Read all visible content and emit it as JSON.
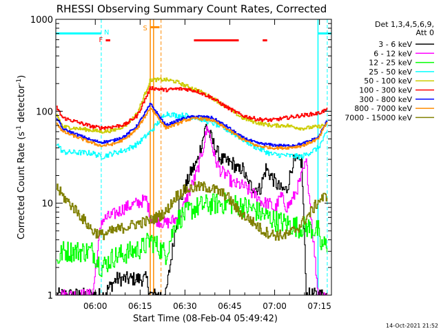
{
  "chart_data": {
    "type": "line",
    "title": "RHESSI Observing Summary Count Rates, Corrected",
    "xlabel": "Start Time (08-Feb-04 05:49:42)",
    "ylabel": "Corrected Count Rate (s",
    "ylabel_sup1": "-1",
    "ylabel_mid": " detector",
    "ylabel_sup2": "-1",
    "ylabel_end": ")",
    "x_ticks": [
      "06:00",
      "06:15",
      "06:30",
      "06:45",
      "07:00",
      "07:15"
    ],
    "x_tick_minutes": [
      6.0,
      21.0,
      36.0,
      51.0,
      66.0,
      81.0
    ],
    "xlim_minutes": [
      -7.2,
      85.0
    ],
    "y_scale": "log",
    "ylim": [
      1,
      1000
    ],
    "y_ticks": [
      "1",
      "10",
      "100",
      "1000"
    ],
    "y_tick_values": [
      1,
      10,
      100,
      1000
    ],
    "legend_header_1": "Det 1,3,4,5,6,9,",
    "legend_header_2": "Att 0",
    "legend_placement": "right",
    "flags": {
      "N_label": "N",
      "F_label": "F",
      "S_label": "S",
      "night_segments": [
        [
          -7.2,
          8.0
        ],
        [
          80.5,
          85.0
        ]
      ],
      "flare_segments": [
        [
          9.5,
          11.0
        ],
        [
          39.0,
          54.0
        ],
        [
          62.0,
          63.5
        ]
      ],
      "saa_segments": [
        [
          24.5,
          27.5
        ]
      ]
    },
    "vertical_markers": [
      {
        "minute": 8.0,
        "color": "#00ffff",
        "style": "dashed"
      },
      {
        "minute": 24.4,
        "color": "#ff8c00",
        "style": "solid"
      },
      {
        "minute": 25.5,
        "color": "#ff8c00",
        "style": "solid"
      },
      {
        "minute": 28.0,
        "color": "#ff8c00",
        "style": "dashed"
      },
      {
        "minute": 80.5,
        "color": "#00ffff",
        "style": "solid"
      },
      {
        "minute": 83.6,
        "color": "#00ffff",
        "style": "dashed"
      }
    ],
    "series": [
      {
        "name": "3 - 6 keV",
        "color": "#000000",
        "x": [
          -7,
          5,
          5.5,
          8,
          8.5,
          13,
          17,
          20,
          23,
          24.5,
          29.5,
          34,
          38,
          40,
          41.5,
          43,
          46,
          48,
          50,
          52,
          54,
          55,
          57,
          59,
          61,
          63,
          66,
          68,
          70,
          72,
          75,
          76.5,
          80,
          81,
          83.6
        ],
        "y": [
          1,
          1,
          1,
          1,
          1,
          1.5,
          1.5,
          1.5,
          1.5,
          1,
          1,
          10,
          22,
          28,
          45,
          70,
          40,
          30,
          28,
          27,
          22,
          25,
          16,
          15,
          14,
          24,
          17,
          14,
          14,
          28,
          28,
          1,
          1,
          1,
          1
        ]
      },
      {
        "name": "6 - 12 keV",
        "color": "#ff00ff",
        "x": [
          -7,
          5,
          8,
          12,
          16,
          20,
          23,
          24.4,
          29.5,
          34,
          38,
          40,
          42,
          43.5,
          46,
          48,
          50,
          52,
          54,
          56,
          58,
          60,
          62,
          64,
          66,
          68,
          70,
          72,
          74,
          76.5,
          80.5,
          82,
          83.6
        ],
        "y": [
          1,
          1,
          6.5,
          7.5,
          9,
          10,
          11,
          7,
          6,
          7,
          15,
          22,
          40,
          70,
          30,
          22,
          20,
          16,
          16,
          15,
          13,
          12,
          10,
          10,
          8.5,
          12,
          9,
          11,
          16,
          28,
          1,
          1,
          1
        ]
      },
      {
        "name": "12 - 25 keV",
        "color": "#00ff00",
        "x": [
          -7,
          -5,
          5,
          8,
          12,
          17,
          22,
          24.4,
          29.5,
          33,
          38,
          42,
          46,
          50,
          54,
          58,
          62,
          66,
          70,
          74,
          76.5,
          80.5,
          81,
          83.6
        ],
        "y": [
          2.3,
          3,
          3,
          2,
          2.6,
          2.9,
          3.3,
          4,
          2.8,
          6.5,
          8.5,
          9.5,
          9.8,
          10,
          9.5,
          8.8,
          7.5,
          6.5,
          6,
          5.5,
          5.5,
          5,
          3.5,
          3.5
        ]
      },
      {
        "name": "25 - 50 keV",
        "color": "#00ffff",
        "x": [
          -7,
          -5,
          5,
          8,
          12,
          16,
          20,
          24.4,
          29.5,
          33,
          36,
          40,
          45,
          50,
          55,
          60,
          65,
          70,
          75,
          80.5,
          83.6
        ],
        "y": [
          45,
          36,
          35,
          32,
          35,
          38,
          44,
          60,
          95,
          90,
          90,
          85,
          75,
          63,
          50,
          40,
          34,
          33,
          32,
          40,
          60
        ]
      },
      {
        "name": "50 - 100 keV",
        "color": "#cccc00",
        "x": [
          -7,
          -5,
          5,
          8,
          12,
          16,
          20,
          24.4,
          29.5,
          33,
          36,
          40,
          45,
          50,
          55,
          60,
          65,
          70,
          75,
          80.5,
          83.6
        ],
        "y": [
          92,
          68,
          62,
          60,
          62,
          70,
          95,
          220,
          220,
          210,
          190,
          170,
          140,
          110,
          85,
          75,
          70,
          70,
          65,
          68,
          72
        ]
      },
      {
        "name": "100 - 300 keV",
        "color": "#ff0000",
        "x": [
          -7,
          -5,
          5,
          8,
          12,
          16,
          20,
          24.4,
          29.5,
          33,
          36,
          40,
          45,
          50,
          55,
          60,
          65,
          70,
          75,
          80.5,
          83.6
        ],
        "y": [
          110,
          85,
          68,
          66,
          68,
          72,
          90,
          180,
          170,
          175,
          175,
          165,
          140,
          110,
          90,
          82,
          80,
          85,
          90,
          95,
          105
        ]
      },
      {
        "name": "300 - 800 keV",
        "color": "#0000ff",
        "x": [
          -7,
          -5,
          5,
          8,
          12,
          16,
          20,
          24.4,
          29.5,
          33,
          36,
          40,
          45,
          50,
          55,
          60,
          65,
          70,
          75,
          80.5,
          83.6
        ],
        "y": [
          85,
          64,
          48,
          46,
          48,
          54,
          70,
          120,
          70,
          78,
          85,
          88,
          85,
          68,
          52,
          45,
          43,
          42,
          44,
          52,
          80
        ]
      },
      {
        "name": "800 - 7000 keV",
        "color": "#ff8c00",
        "x": [
          -7,
          -5,
          5,
          8,
          12,
          16,
          20,
          24.4,
          29.5,
          33,
          36,
          40,
          45,
          50,
          55,
          60,
          65,
          70,
          75,
          80.5,
          83.6
        ],
        "y": [
          75,
          60,
          45,
          42,
          44,
          50,
          65,
          110,
          66,
          72,
          80,
          84,
          80,
          64,
          50,
          42,
          40,
          40,
          42,
          50,
          78
        ]
      },
      {
        "name": "7000 - 15000 keV",
        "color": "#808000",
        "x": [
          -7,
          -5,
          0,
          5,
          8,
          12,
          16,
          20,
          24.4,
          29.5,
          33,
          36,
          40,
          43,
          46,
          50,
          54,
          58,
          62,
          66,
          70,
          74,
          78,
          81,
          83.6
        ],
        "y": [
          15,
          12,
          8,
          5,
          4.5,
          5,
          5.5,
          6,
          6.5,
          8,
          12,
          14,
          15,
          15,
          14,
          12,
          8,
          6.5,
          5,
          4.5,
          4.5,
          5.5,
          8,
          11,
          12
        ]
      }
    ]
  },
  "footer": {
    "timestamp": "14-Oct-2021 21:52"
  }
}
